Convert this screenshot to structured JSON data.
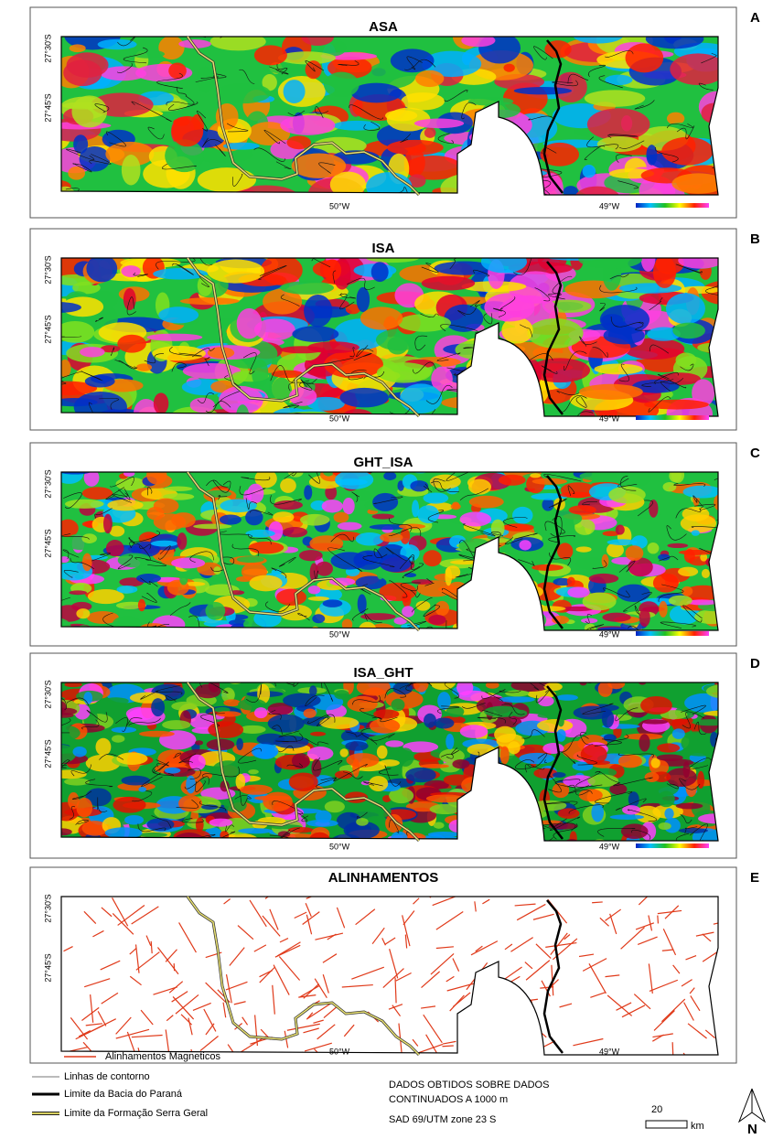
{
  "panels": [
    {
      "letter": "A",
      "title": "ASA",
      "lat_labels": [
        "27°30'S",
        "27°45'S"
      ],
      "lon_labels": [
        "50°W",
        "49°W"
      ]
    },
    {
      "letter": "B",
      "title": "ISA",
      "lat_labels": [
        "27°30'S",
        "27°45'S"
      ],
      "lon_labels": [
        "50°W",
        "49°W"
      ]
    },
    {
      "letter": "C",
      "title": "GHT_ISA",
      "lat_labels": [
        "27°30'S",
        "27°45'S"
      ],
      "lon_labels": [
        "50°W",
        "49°W"
      ]
    },
    {
      "letter": "D",
      "title": "ISA_GHT",
      "lat_labels": [
        "27°30'S",
        "27°45'S"
      ],
      "lon_labels": [
        "50°W",
        "49°W"
      ]
    },
    {
      "letter": "E",
      "title": "ALINHAMENTOS",
      "lat_labels": [
        "27°30'S",
        "27°45'S"
      ],
      "lon_labels": [
        "50°W",
        "49°W"
      ],
      "legend": "Alinhamentos Magneticos"
    }
  ],
  "legend": [
    "Linhas de contorno",
    "Limite da Bacia do Paraná",
    "Limite da Formação Serra Geral"
  ],
  "notes": [
    "DADOS OBTIDOS SOBRE DADOS",
    "CONTINUADOS A 1000 m",
    "SAD 69/UTM zone 23 S"
  ],
  "scale": {
    "value": 20,
    "unit": "km"
  },
  "north": "N"
}
